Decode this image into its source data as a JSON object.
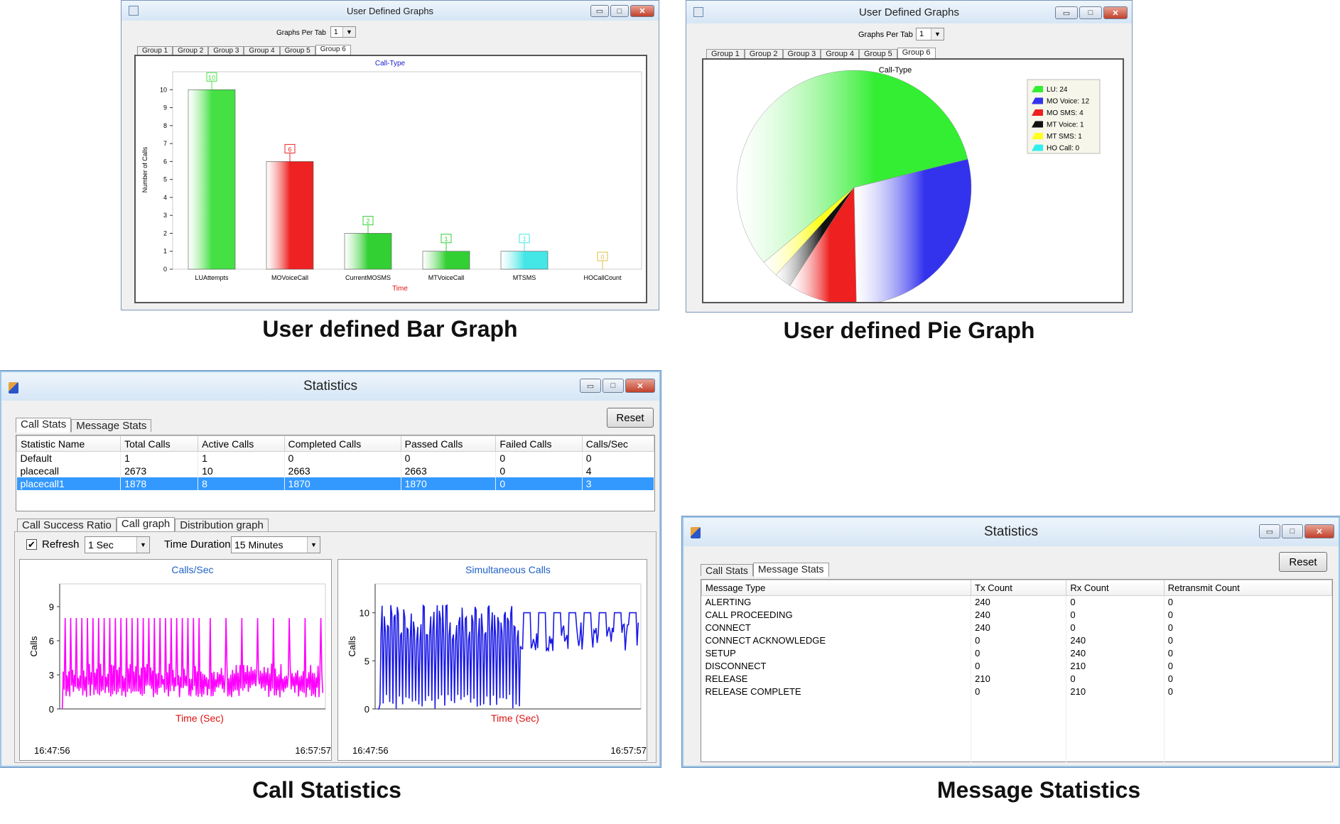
{
  "bar_window": {
    "title": "User Defined Graphs",
    "graphs_per_tab_label": "Graphs Per Tab",
    "graphs_per_tab_value": "1",
    "tabs": [
      "Group 1",
      "Group 2",
      "Group 3",
      "Group 4",
      "Group 5",
      "Group 6"
    ],
    "active_tab": 5,
    "caption": "User defined Bar Graph"
  },
  "pie_window": {
    "title": "User Defined Graphs",
    "graphs_per_tab_label": "Graphs Per Tab",
    "graphs_per_tab_value": "1",
    "tabs": [
      "Group 1",
      "Group 2",
      "Group 3",
      "Group 4",
      "Group 5",
      "Group 6"
    ],
    "active_tab": 5,
    "caption": "User defined Pie Graph"
  },
  "call_window": {
    "title": "Statistics",
    "tabs": [
      "Call Stats",
      "Message Stats"
    ],
    "reset_label": "Reset",
    "columns": [
      "Statistic Name",
      "Total Calls",
      "Active Calls",
      "Completed Calls",
      "Passed Calls",
      "Failed Calls",
      "Calls/Sec"
    ],
    "rows": [
      [
        "Default",
        "1",
        "1",
        "0",
        "0",
        "0",
        "0"
      ],
      [
        "placecall",
        "2673",
        "10",
        "2663",
        "2663",
        "0",
        "4"
      ],
      [
        "placecall1",
        "1878",
        "8",
        "1870",
        "1870",
        "0",
        "3"
      ]
    ],
    "selected_row": 2,
    "graph_tabs": [
      "Call Success Ratio",
      "Call graph",
      "Distribution graph"
    ],
    "refresh_label": "Refresh",
    "refresh_checked": true,
    "refresh_value": "1 Sec",
    "time_duration_label": "Time Duration",
    "time_duration_value": "15 Minutes",
    "caption": "Call Statistics"
  },
  "msg_window": {
    "title": "Statistics",
    "tabs": [
      "Call Stats",
      "Message Stats"
    ],
    "reset_label": "Reset",
    "columns": [
      "Message Type",
      "Tx Count",
      "Rx Count",
      "Retransmit Count"
    ],
    "rows": [
      [
        "ALERTING",
        "240",
        "0",
        "0"
      ],
      [
        "CALL PROCEEDING",
        "240",
        "0",
        "0"
      ],
      [
        "CONNECT",
        "240",
        "0",
        "0"
      ],
      [
        "CONNECT ACKNOWLEDGE",
        "0",
        "240",
        "0"
      ],
      [
        "SETUP",
        "0",
        "240",
        "0"
      ],
      [
        "DISCONNECT",
        "0",
        "210",
        "0"
      ],
      [
        "RELEASE",
        "210",
        "0",
        "0"
      ],
      [
        "RELEASE COMPLETE",
        "0",
        "210",
        "0"
      ]
    ],
    "caption": "Message Statistics"
  },
  "colors": {
    "green": "#33dd33",
    "red": "#ee2222",
    "cyan": "#44e6e6",
    "blue": "#2a2ae6",
    "magenta": "#ff00ff",
    "title_blue": "#1a1acc",
    "axis_red": "#dd1111",
    "select": "#3399ff"
  },
  "chart_data": [
    {
      "type": "bar",
      "title": "Call-Type",
      "xlabel": "Time",
      "ylabel": "Number of Calls",
      "categories": [
        "LUAttempts",
        "MOVoiceCall",
        "CurrentMOSMS",
        "MTVoiceCall",
        "MTSMS",
        "HOCallCount"
      ],
      "values": [
        10,
        6,
        2,
        1,
        1,
        0
      ],
      "bar_colors": [
        "#44e044",
        "#ee2222",
        "#33d033",
        "#33d033",
        "#44e6e6",
        "#e0c040"
      ],
      "ylim": [
        0,
        11
      ],
      "yticks": [
        0,
        1,
        2,
        3,
        4,
        5,
        6,
        7,
        8,
        9,
        10
      ],
      "data_labels": true
    },
    {
      "type": "pie",
      "title": "Call-Type",
      "slices": [
        {
          "label": "LU",
          "value": 24,
          "color": "#33ee33"
        },
        {
          "label": "MO Voice",
          "value": 12,
          "color": "#3333ee"
        },
        {
          "label": "MO SMS",
          "value": 4,
          "color": "#ee2020"
        },
        {
          "label": "MT Voice",
          "value": 1,
          "color": "#111111"
        },
        {
          "label": "MT SMS",
          "value": 1,
          "color": "#ffff22"
        },
        {
          "label": "HO Call",
          "value": 0,
          "color": "#33eeee"
        }
      ],
      "legend_entries": [
        "LU: 24",
        "MO Voice: 12",
        "MO SMS: 4",
        "MT Voice: 1",
        "MT SMS: 1",
        "HO Call: 0"
      ],
      "legend_position": "top-right"
    },
    {
      "type": "line",
      "title": "Calls/Sec",
      "xlabel": "Time (Sec)",
      "ylabel": "Calls",
      "x_start": "16:47:56",
      "x_end": "16:57:57",
      "ylim": [
        0,
        11
      ],
      "yticks": [
        0,
        3,
        6,
        9
      ],
      "series": [
        {
          "color": "#ff00ff",
          "pattern": "oscillating 1-4 with periodic spikes to 8, then steady 1-4"
        }
      ]
    },
    {
      "type": "line",
      "title": "Simultaneous Calls",
      "xlabel": "Time (Sec)",
      "ylabel": "Calls",
      "x_start": "16:47:56",
      "x_end": "16:57:57",
      "ylim": [
        0,
        13
      ],
      "yticks": [
        0,
        5,
        10
      ],
      "series": [
        {
          "color": "#1a1ae6",
          "pattern": "oscillating 0-11, then steady 6-10"
        }
      ]
    }
  ]
}
